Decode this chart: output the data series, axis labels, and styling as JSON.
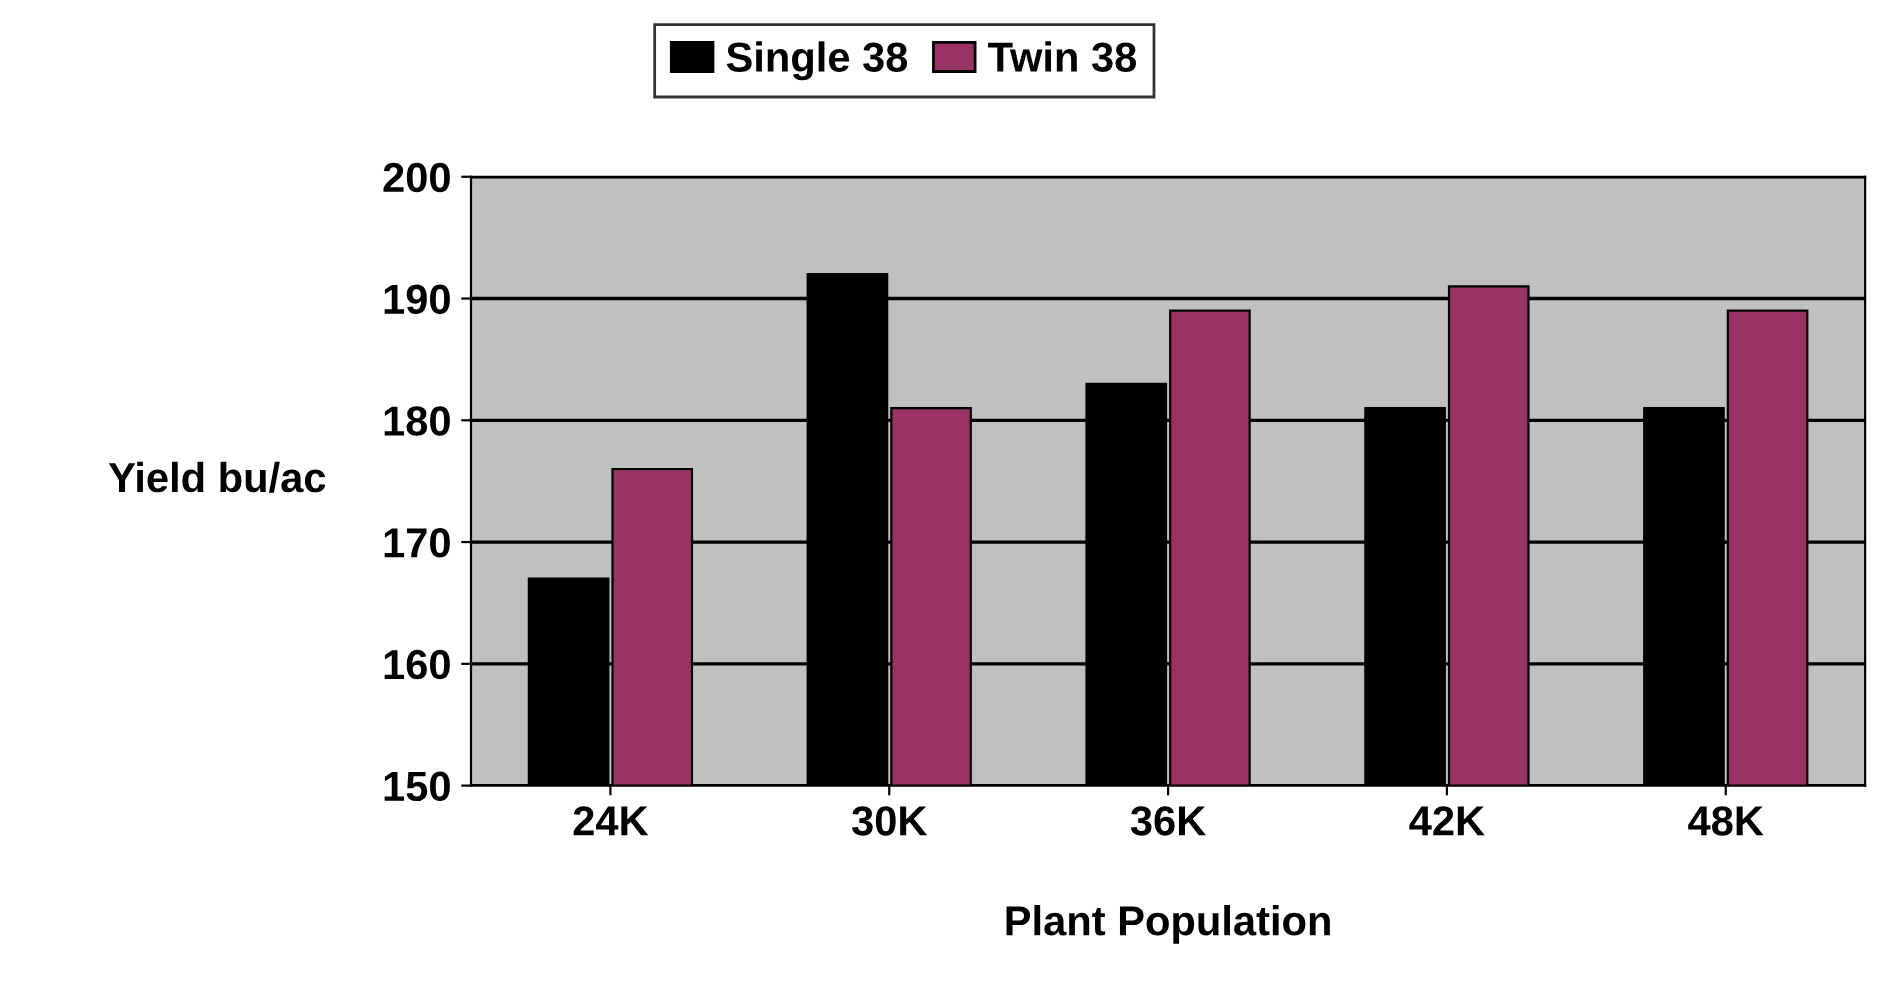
{
  "chart_data": {
    "type": "bar",
    "xlabel": "Plant Population",
    "ylabel": "Yield bu/ac",
    "categories": [
      "24K",
      "30K",
      "36K",
      "42K",
      "48K"
    ],
    "series": [
      {
        "name": "Single 38",
        "color": "#000000",
        "values": [
          167,
          192,
          183,
          181,
          181
        ]
      },
      {
        "name": "Twin 38",
        "color": "#993366",
        "values": [
          176,
          181,
          189,
          191,
          189
        ]
      }
    ],
    "ylim": [
      150,
      200
    ],
    "yticks": [
      150,
      160,
      170,
      180,
      190,
      200
    ],
    "grid": "y",
    "legend": "top"
  }
}
